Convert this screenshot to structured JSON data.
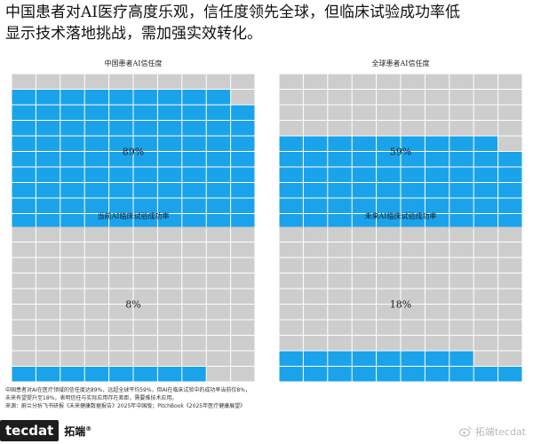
{
  "headline": {
    "line1": "中国患者对AI医疗高度乐观，信任度领先全球，但临床试验成功率低",
    "line2": "显示技术落地挑战，需加强实效转化。"
  },
  "chart_data": [
    {
      "type": "waffle",
      "title": "中国患者AI信任度",
      "value": 89,
      "label": "89%"
    },
    {
      "type": "waffle",
      "title": "全球患者AI信任度",
      "value": 59,
      "label": "59%"
    },
    {
      "type": "waffle",
      "title": "当前AI临床试验成功率",
      "value": 8,
      "label": "8%"
    },
    {
      "type": "waffle",
      "title": "未来AI临床试验成功率",
      "value": 18,
      "label": "18%"
    }
  ],
  "colors": {
    "filled": "#1aa3ea",
    "empty": "#cdcdcd"
  },
  "notes": {
    "line1": "中国患者对AI在医疗领域的信任度达89%，远超全球平均59%，但AI在临床试验中的成功率当前仅8%，",
    "line2": "未来有望提升至18%，表明信任与实际应用存在差距，需要推技术应用。",
    "line3": "来源：蔚兰分析飞书研报《未来健康数据报告》2025年中国版；PitchBook《2025年医疗健康展望》"
  },
  "brand": {
    "mark": "tecdat",
    "name": "拓端",
    "reg": "®"
  },
  "watermark": {
    "text": "拓端tecdat"
  }
}
